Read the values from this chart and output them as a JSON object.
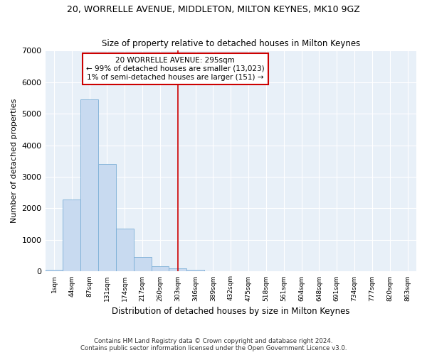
{
  "title": "20, WORRELLE AVENUE, MIDDLETON, MILTON KEYNES, MK10 9GZ",
  "subtitle": "Size of property relative to detached houses in Milton Keynes",
  "xlabel": "Distribution of detached houses by size in Milton Keynes",
  "ylabel": "Number of detached properties",
  "footer_line1": "Contains HM Land Registry data © Crown copyright and database right 2024.",
  "footer_line2": "Contains public sector information licensed under the Open Government Licence v3.0.",
  "categories": [
    "1sqm",
    "44sqm",
    "87sqm",
    "131sqm",
    "174sqm",
    "217sqm",
    "260sqm",
    "303sqm",
    "346sqm",
    "389sqm",
    "432sqm",
    "475sqm",
    "518sqm",
    "561sqm",
    "604sqm",
    "648sqm",
    "691sqm",
    "734sqm",
    "777sqm",
    "820sqm",
    "863sqm"
  ],
  "values": [
    55,
    2280,
    5450,
    3400,
    1350,
    450,
    160,
    100,
    50,
    0,
    0,
    0,
    0,
    0,
    0,
    0,
    0,
    0,
    0,
    0,
    0
  ],
  "bar_color": "#c8daf0",
  "bar_edge_color": "#7aaed6",
  "bg_color": "#e8f0f8",
  "grid_color": "#ffffff",
  "vline_x_index": 7,
  "vline_color": "#cc0000",
  "annotation_line1": "20 WORRELLE AVENUE: 295sqm",
  "annotation_line2": "← 99% of detached houses are smaller (13,023)",
  "annotation_line3": "1% of semi-detached houses are larger (151) →",
  "annotation_box_color": "#cc0000",
  "ylim": [
    0,
    7000
  ],
  "yticks": [
    0,
    1000,
    2000,
    3000,
    4000,
    5000,
    6000,
    7000
  ]
}
